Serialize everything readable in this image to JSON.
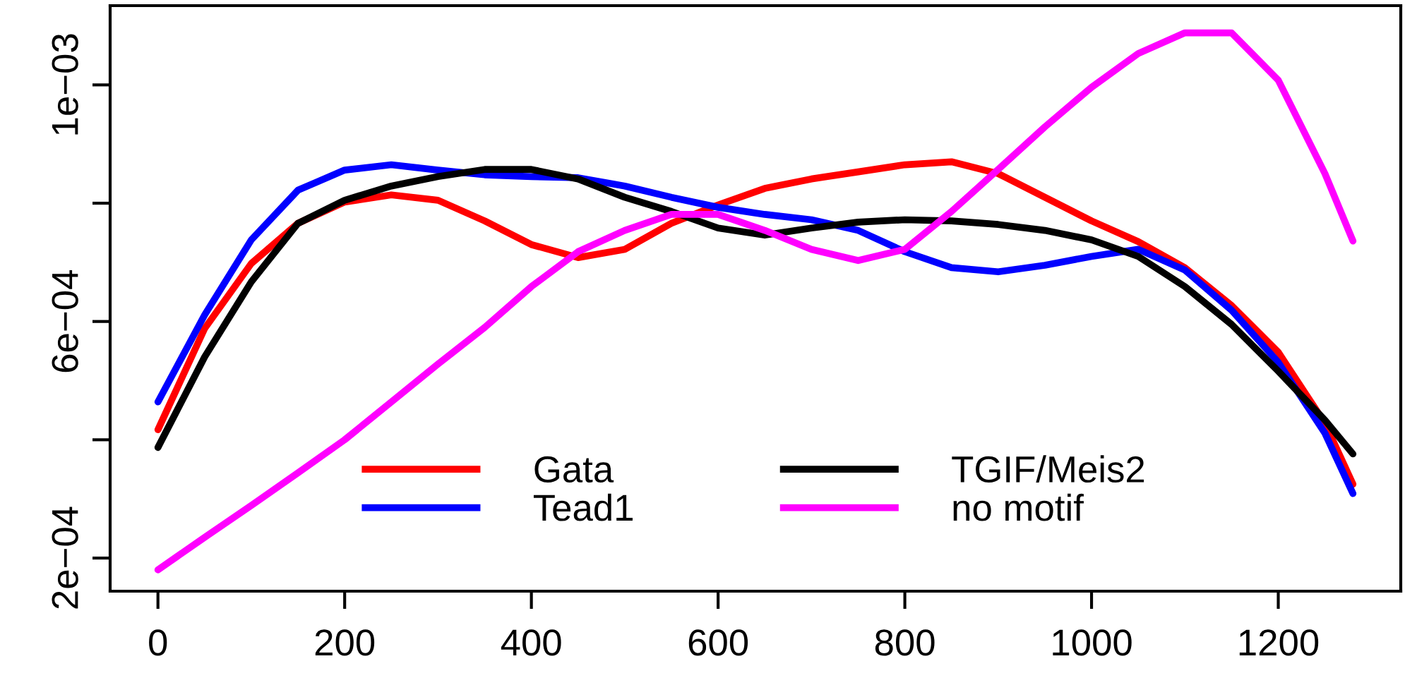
{
  "chart_data": {
    "type": "line",
    "x": [
      0,
      50,
      100,
      150,
      200,
      250,
      300,
      350,
      400,
      450,
      500,
      550,
      600,
      650,
      700,
      750,
      800,
      850,
      900,
      950,
      1000,
      1050,
      1100,
      1150,
      1200,
      1250,
      1280
    ],
    "series": [
      {
        "name": "Gata",
        "color": "#ff0000",
        "values": [
          0.000417,
          0.000588,
          0.000698,
          0.000766,
          0.000802,
          0.000814,
          0.000805,
          0.00077,
          0.00073,
          0.000708,
          0.000722,
          0.000766,
          0.000797,
          0.000825,
          0.000841,
          0.000853,
          0.000865,
          0.00087,
          0.00085,
          0.00081,
          0.00077,
          0.000735,
          0.000691,
          0.000627,
          0.000548,
          0.000428,
          0.000325
        ]
      },
      {
        "name": "Tead1",
        "color": "#0000ff",
        "values": [
          0.000464,
          0.000611,
          0.000738,
          0.000822,
          0.000856,
          0.000865,
          0.000856,
          0.000848,
          0.000845,
          0.000843,
          0.000829,
          0.00081,
          0.000793,
          0.000781,
          0.000772,
          0.000754,
          0.000718,
          0.000691,
          0.000684,
          0.000695,
          0.00071,
          0.000722,
          0.000687,
          0.000619,
          0.000531,
          0.000411,
          0.000309
        ]
      },
      {
        "name": "TGIF/Meis2",
        "color": "#000000",
        "values": [
          0.000387,
          0.00054,
          0.000667,
          0.000766,
          0.000805,
          0.000829,
          0.000845,
          0.000857,
          0.000857,
          0.000841,
          0.00081,
          0.000786,
          0.000758,
          0.000746,
          0.000758,
          0.000768,
          0.000772,
          0.00077,
          0.000764,
          0.000754,
          0.000738,
          0.00071,
          0.000659,
          0.000595,
          0.000516,
          0.000433,
          0.000376
        ]
      },
      {
        "name": "no motif",
        "color": "#ff00ff",
        "values": [
          0.00018,
          0.000235,
          0.000289,
          0.000344,
          0.0004,
          0.000464,
          0.000528,
          0.00059,
          0.000659,
          0.000718,
          0.000754,
          0.000781,
          0.000781,
          0.000754,
          0.000722,
          0.000703,
          0.000722,
          0.000786,
          0.000857,
          0.000929,
          0.000996,
          0.001053,
          0.001088,
          0.001088,
          0.001008,
          0.00085,
          0.000736
        ]
      }
    ],
    "xlim": [
      -51.2,
      1331.2
    ],
    "ylim": [
      0.000144,
      0.001134
    ],
    "xticks": [
      0,
      200,
      400,
      600,
      800,
      1000,
      1200
    ],
    "yticks": [
      {
        "value": 0.0002,
        "label": "2e−04"
      },
      {
        "value": 0.0004,
        "label": null
      },
      {
        "value": 0.0006,
        "label": "6e−04"
      },
      {
        "value": 0.0008,
        "label": null
      },
      {
        "value": 0.001,
        "label": "1e−03"
      }
    ],
    "legend": "bottom",
    "grid": false,
    "marker": "none",
    "line_style": "solid"
  }
}
